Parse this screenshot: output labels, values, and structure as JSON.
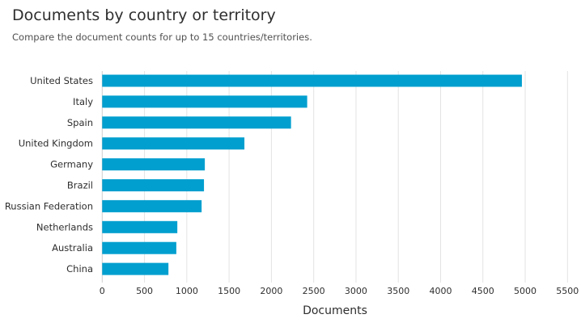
{
  "header": {
    "title": "Documents by country or territory",
    "subtitle": "Compare the document counts for up to 15 countries/territories."
  },
  "chart_data": {
    "type": "bar",
    "orientation": "horizontal",
    "title": "Documents by country or territory",
    "subtitle": "Compare the document counts for up to 15 countries/territories.",
    "categories": [
      "United States",
      "Italy",
      "Spain",
      "United Kingdom",
      "Germany",
      "Brazil",
      "Russian Federation",
      "Netherlands",
      "Australia",
      "China"
    ],
    "values": [
      4961,
      2423,
      2232,
      1681,
      1213,
      1203,
      1175,
      888,
      876,
      783
    ],
    "xlabel": "Documents",
    "ylabel": "",
    "xlim": [
      0,
      5500
    ],
    "xticks": [
      "0",
      "500",
      "1000",
      "1500",
      "2000",
      "2500",
      "3000",
      "3500",
      "4000",
      "4500",
      "5000",
      "5500"
    ],
    "grid": true,
    "bar_color": "#009fcf",
    "grid_color": "#e3e3e3"
  }
}
